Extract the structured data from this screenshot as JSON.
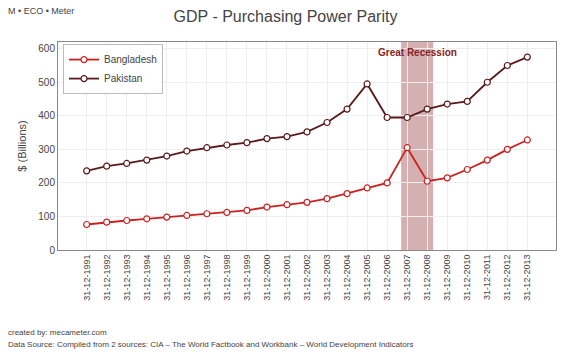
{
  "chart_data": {
    "type": "line",
    "title": "GDP - Purchasing Power Parity",
    "y_label": "$ (Billions)",
    "categories": [
      "31-12-1991",
      "31-12-1992",
      "31-12-1993",
      "31-12-1994",
      "31-12-1995",
      "31-12-1996",
      "31-12-1997",
      "31-12-1998",
      "31-12-1999",
      "31-12-2000",
      "31-12-2001",
      "31-12-2002",
      "31-12-2003",
      "31-12-2004",
      "31-12-2005",
      "31-12-2006",
      "31-12-2007",
      "31-12-2008",
      "31-12-2009",
      "31-12-2010",
      "31-12-2011",
      "31-12-2012",
      "31-12-2013"
    ],
    "series": [
      {
        "name": "Pakistan",
        "color": "#5a1a1a",
        "marker": "circle",
        "line_style": "solid",
        "values": [
          236,
          250,
          258,
          268,
          280,
          295,
          305,
          313,
          320,
          332,
          338,
          352,
          380,
          420,
          495,
          395,
          395,
          420,
          435,
          443,
          500,
          550,
          575
        ]
      },
      {
        "name": "Bangladesh",
        "color": "#cc2020",
        "marker": "circle",
        "line_style": "solid",
        "values": [
          76,
          83,
          88,
          93,
          98,
          103,
          108,
          112,
          118,
          128,
          135,
          142,
          153,
          168,
          185,
          200,
          305,
          205,
          215,
          240,
          268,
          300,
          328
        ]
      }
    ],
    "ylim": [
      0,
      620
    ],
    "yticks": [
      0,
      100,
      200,
      300,
      400,
      500,
      600
    ],
    "grid": true,
    "legend": "upper left",
    "shaded": {
      "from": "31-12-2007",
      "to": "31-12-2008",
      "color": "#b07070",
      "label": "Great Recession",
      "label_color": "#882222"
    },
    "annotations": {
      "logo": [
        "M",
        "•",
        "ECO",
        "•",
        "Meter"
      ],
      "footer": [
        "created by: mecameter.com",
        "Data Source: Compiled from 2 sources: CIA – The World Factbook and Workbank – World Development Indicators"
      ]
    }
  }
}
